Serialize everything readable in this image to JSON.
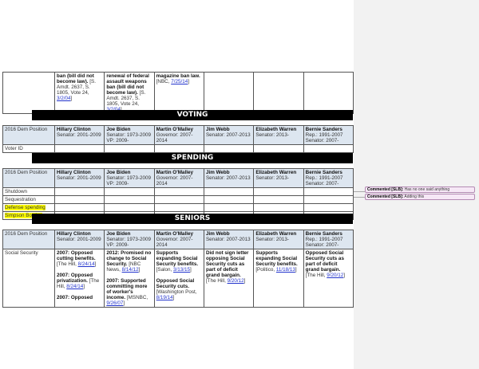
{
  "top_row": {
    "cells": [
      {
        "bold": "ban (bill did not become law).",
        "text": " [S. Amdt. 2637, S. 1805, Vote 24, ",
        "link": "3/2/04",
        "end": "]"
      },
      {
        "bold": "renewal of federal assault weapons ban (bill did not become law).",
        "text": " [S. Amdt. 2637, S. 1805, Vote 24, ",
        "link": "3/2/04",
        "end": "]"
      },
      {
        "bold": "magazine ban law.",
        "text": " [NBC, ",
        "link": "7/25/14",
        "end": "]"
      }
    ]
  },
  "header": {
    "position": "2016 Dem Position",
    "candidates": [
      {
        "name": "Hillary Clinton",
        "role": "Senator: 2001-2009"
      },
      {
        "name": "Joe Biden",
        "role": "Senator: 1973-2009",
        "role2": "VP: 2009-"
      },
      {
        "name": "Martin O'Malley",
        "role": "Governor: 2007-2014"
      },
      {
        "name": "Jim Webb",
        "role": "Senator: 2007-2013"
      },
      {
        "name": "Elizabeth Warren",
        "role": "Senator: 2013-"
      },
      {
        "name": "Bernie Sanders",
        "role": "Rep.: 1991-2007",
        "role2": "Senator: 2007-"
      }
    ]
  },
  "voting": {
    "title": "VOTING",
    "rows": [
      "Voter ID"
    ]
  },
  "spending": {
    "title": "SPENDING",
    "rows": [
      "Shutdown",
      "Sequestration",
      "Defense spending",
      "Simpson Bowles"
    ],
    "highlight_color": "#ffff00"
  },
  "seniors": {
    "title": "SENIORS",
    "row_label": "Social Security",
    "cells": [
      [
        {
          "bold": "2007: Opposed cutting benefits.",
          "text": " [The Hill, ",
          "link": "8/24/14",
          "end": "]"
        },
        {
          "bold": "2007: Opposed privatization.",
          "text": " [The Hill, ",
          "link": "8/24/14",
          "end": "]"
        },
        {
          "bold": "2007: Opposed",
          "text": "",
          "link": "",
          "end": ""
        }
      ],
      [
        {
          "bold": "2012: Promised no change to Social Security.",
          "text": " [NBC News, ",
          "link": "8/14/12",
          "end": "]"
        },
        {
          "bold": "2007: Supported committing more of worker's income.",
          "text": " [MSNBC, ",
          "link": "9/26/07",
          "end": "]"
        }
      ],
      [
        {
          "bold": "Supports expanding Social Security benefits.",
          "text": " [Salon, ",
          "link": "3/13/15",
          "end": "]"
        },
        {
          "bold": "Opposed Social Security cuts.",
          "text": " [Washington Post, ",
          "link": "8/19/14",
          "end": "]"
        }
      ],
      [
        {
          "bold": "Did not sign letter opposing Social Security cuts as part of deficit grand bargain.",
          "text": " [The Hill, ",
          "link": "9/20/12",
          "end": "]"
        }
      ],
      [
        {
          "bold": "Supports expanding Social Security benefits.",
          "text": " [Politico, ",
          "link": "11/18/13",
          "end": "]"
        }
      ],
      [
        {
          "bold": "Opposed Social Security cuts as part of deficit grand bargain.",
          "text": " [The Hill, ",
          "link": "9/20/12",
          "end": "]"
        }
      ]
    ]
  },
  "comments": [
    {
      "author": "Commented [SLB]:",
      "text": " Has no one said anything"
    },
    {
      "author": "Commented [SLB]:",
      "text": " Adding this"
    }
  ],
  "colors": {
    "header_bg": "#dde6f0",
    "comment_bg": "#f6e8f6",
    "link": "#2233cc"
  }
}
